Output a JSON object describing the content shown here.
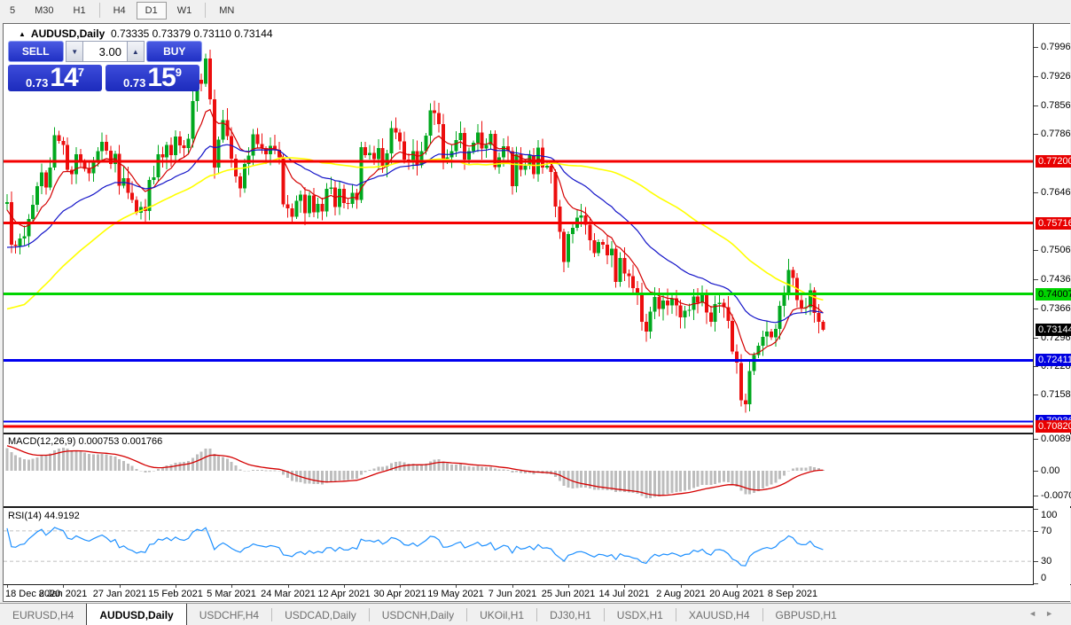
{
  "toolbar": {
    "buttons": [
      "5",
      "M30",
      "H1",
      "H4",
      "D1",
      "W1",
      "MN"
    ],
    "active": "D1",
    "separators_after": [
      3,
      6
    ]
  },
  "chart": {
    "header": {
      "symbol": "AUDUSD,Daily",
      "ohlc": "0.73335 0.73379 0.73110 0.73144"
    },
    "trade_panel": {
      "sell_label": "SELL",
      "buy_label": "BUY",
      "volume": "3.00",
      "spin_down_icon": "▼",
      "spin_up_icon": "▲",
      "sell_prefix": "0.73",
      "sell_big": "14",
      "sell_sup": "7",
      "buy_prefix": "0.73",
      "buy_big": "15",
      "buy_sup": "9"
    }
  },
  "chart_data": {
    "type": "candlestick",
    "symbol": "AUDUSD",
    "timeframe": "Daily",
    "current_price": 0.73144,
    "y_axis": {
      "max": 0.80515,
      "min": 0.70668
    },
    "y_ticks": [
      {
        "text": "0.79960",
        "price": 0.7996
      },
      {
        "text": "0.79260",
        "price": 0.7926
      },
      {
        "text": "0.78560",
        "price": 0.7856
      },
      {
        "text": "0.77860",
        "price": 0.7786
      },
      {
        "text": "0.76460",
        "price": 0.7646
      },
      {
        "text": "0.75060",
        "price": 0.7506
      },
      {
        "text": "0.74360",
        "price": 0.7436
      },
      {
        "text": "0.73660",
        "price": 0.7366
      },
      {
        "text": "0.72960",
        "price": 0.7296
      },
      {
        "text": "0.72280",
        "price": 0.7228
      },
      {
        "text": "0.71580",
        "price": 0.7158
      }
    ],
    "levels": [
      {
        "price": 0.772,
        "color": "#f40000",
        "width": 3
      },
      {
        "price": 0.75716,
        "color": "#f40000",
        "width": 3
      },
      {
        "price": 0.74007,
        "color": "#00d400",
        "width": 3
      },
      {
        "price": 0.72411,
        "color": "#0000f0",
        "width": 3
      },
      {
        "price": 0.70936,
        "color": "#0000f0",
        "width": 2
      },
      {
        "price": 0.7082,
        "color": "#f40000",
        "width": 3
      }
    ],
    "axis_labels": [
      {
        "text": "0.77200",
        "price": 0.772,
        "bg": "#e80000",
        "fg": "#fff"
      },
      {
        "text": "0.75716",
        "price": 0.75716,
        "bg": "#e80000",
        "fg": "#fff"
      },
      {
        "text": "0.74007",
        "price": 0.74007,
        "bg": "#00d400",
        "fg": "#000"
      },
      {
        "text": "0.72411",
        "price": 0.72411,
        "bg": "#0000e0",
        "fg": "#fff"
      },
      {
        "text": "0.70936",
        "price": 0.70936,
        "bg": "#0000e0",
        "fg": "#fff"
      },
      {
        "text": "0.70820",
        "price": 0.7082,
        "bg": "#e80000",
        "fg": "#fff"
      },
      {
        "text": "0.73144",
        "price": 0.73144,
        "bg": "#000000",
        "fg": "#fff"
      }
    ],
    "date_labels": [
      "18 Dec 2020",
      "8 Jan 2021",
      "27 Jan 2021",
      "15 Feb 2021",
      "5 Mar 2021",
      "24 Mar 2021",
      "12 Apr 2021",
      "30 Apr 2021",
      "19 May 2021",
      "7 Jun 2021",
      "25 Jun 2021",
      "14 Jul 2021",
      "2 Aug 2021",
      "20 Aug 2021",
      "8 Sep 2021"
    ],
    "date_label_bar_indices": [
      0,
      13,
      26,
      39,
      52,
      65,
      78,
      91,
      104,
      117,
      130,
      143,
      156,
      169,
      182
    ],
    "colors": {
      "up": "#00a81e",
      "down": "#ec0e0e",
      "ma_fast": "#d40000",
      "ma_mid": "#1414c8",
      "ma_slow": "#ffff00",
      "macd_hist": "#bdbdbd",
      "macd_signal": "#d40000",
      "rsi_line": "#1e90ff",
      "rsi_grid": "#c8c8c8"
    },
    "moving_averages": [
      {
        "name": "fast",
        "method": "ema",
        "period": 10
      },
      {
        "name": "mid",
        "method": "ema",
        "period": 30
      },
      {
        "name": "slow",
        "method": "sma",
        "period": 60
      }
    ],
    "prehistory_closes": [
      0.703,
      0.7045,
      0.706,
      0.7042,
      0.7075,
      0.7095,
      0.708,
      0.711,
      0.7135,
      0.712,
      0.715,
      0.717,
      0.7155,
      0.7185,
      0.721,
      0.7195,
      0.723,
      0.7255,
      0.724,
      0.727,
      0.73,
      0.7285,
      0.7315,
      0.734,
      0.7325,
      0.7355,
      0.738,
      0.7365,
      0.7395,
      0.742,
      0.7405,
      0.743,
      0.7455,
      0.744,
      0.747,
      0.749,
      0.7475,
      0.75,
      0.752,
      0.7505,
      0.753,
      0.755,
      0.7535,
      0.756,
      0.7575,
      0.756,
      0.7585,
      0.76,
      0.759,
      0.761,
      0.762,
      0.7605,
      0.7615,
      0.7625,
      0.7618
    ],
    "closes": [
      0.7622,
      0.752,
      0.7516,
      0.7535,
      0.754,
      0.7582,
      0.7616,
      0.7661,
      0.7694,
      0.7657,
      0.7705,
      0.7783,
      0.777,
      0.776,
      0.77,
      0.769,
      0.7738,
      0.772,
      0.7702,
      0.7692,
      0.772,
      0.7745,
      0.7767,
      0.7746,
      0.7714,
      0.7739,
      0.7662,
      0.768,
      0.7645,
      0.7628,
      0.7597,
      0.761,
      0.7601,
      0.7676,
      0.7682,
      0.7738,
      0.773,
      0.776,
      0.7735,
      0.778,
      0.7759,
      0.7752,
      0.7775,
      0.7866,
      0.7917,
      0.7907,
      0.7968,
      0.787,
      0.7706,
      0.7773,
      0.782,
      0.7781,
      0.7727,
      0.7684,
      0.7655,
      0.7714,
      0.7734,
      0.7786,
      0.7762,
      0.7752,
      0.7737,
      0.7758,
      0.7748,
      0.773,
      0.7617,
      0.7607,
      0.7587,
      0.7625,
      0.764,
      0.7595,
      0.7638,
      0.7598,
      0.7618,
      0.76,
      0.7654,
      0.7657,
      0.761,
      0.7654,
      0.762,
      0.7618,
      0.7645,
      0.7628,
      0.7755,
      0.7735,
      0.7741,
      0.7726,
      0.7752,
      0.7708,
      0.774,
      0.78,
      0.779,
      0.7768,
      0.7725,
      0.7718,
      0.7745,
      0.7711,
      0.7745,
      0.7782,
      0.7843,
      0.7837,
      0.781,
      0.7727,
      0.773,
      0.7745,
      0.7772,
      0.7789,
      0.7725,
      0.7745,
      0.7765,
      0.779,
      0.7751,
      0.776,
      0.7787,
      0.7706,
      0.773,
      0.7757,
      0.7745,
      0.7661,
      0.7738,
      0.77,
      0.771,
      0.7735,
      0.769,
      0.7754,
      0.7706,
      0.771,
      0.7695,
      0.7612,
      0.7551,
      0.7478,
      0.7545,
      0.756,
      0.7585,
      0.759,
      0.7568,
      0.753,
      0.7499,
      0.7526,
      0.752,
      0.7494,
      0.751,
      0.743,
      0.7488,
      0.745,
      0.7444,
      0.7415,
      0.74,
      0.7334,
      0.731,
      0.7358,
      0.7394,
      0.7365,
      0.7385,
      0.7373,
      0.739,
      0.7373,
      0.7344,
      0.736,
      0.7363,
      0.7395,
      0.738,
      0.74,
      0.7356,
      0.7334,
      0.7377,
      0.738,
      0.7369,
      0.7336,
      0.7262,
      0.7235,
      0.7145,
      0.7135,
      0.7215,
      0.7254,
      0.7276,
      0.7298,
      0.731,
      0.7296,
      0.7317,
      0.7372,
      0.74,
      0.7459,
      0.744,
      0.7386,
      0.7368,
      0.7369,
      0.741,
      0.7355,
      0.73335,
      0.73144
    ],
    "last_candle_ohlc": [
      0.73335,
      0.73379,
      0.7311,
      0.73144
    ],
    "macd": {
      "label_full": "MACD(12,26,9) 0.000753 0.001766",
      "params": [
        12,
        26,
        9
      ],
      "current_values": [
        0.000753,
        0.001766
      ],
      "axis_labels": [
        {
          "text": "0.008904",
          "v": 0.008904
        },
        {
          "text": "0.00",
          "v": 0.0
        },
        {
          "text": "-0.007013",
          "v": -0.007013
        }
      ],
      "range": {
        "max": 0.0102,
        "min": -0.01
      }
    },
    "rsi": {
      "label_full": "RSI(14) 44.9192",
      "period": 14,
      "current_value": 44.9192,
      "levels": [
        70,
        30
      ],
      "axis_labels": [
        {
          "text": "100",
          "v": 100
        },
        {
          "text": "70",
          "v": 70
        },
        {
          "text": "30",
          "v": 30
        },
        {
          "text": "0",
          "v": 0
        }
      ]
    }
  },
  "tabs": {
    "items": [
      {
        "label": "EURUSD,H4",
        "active": false
      },
      {
        "label": "AUDUSD,Daily",
        "active": true
      },
      {
        "label": "USDCHF,H4",
        "active": false
      },
      {
        "label": "USDCAD,Daily",
        "active": false
      },
      {
        "label": "USDCNH,Daily",
        "active": false
      },
      {
        "label": "UKOil,H1",
        "active": false
      },
      {
        "label": "DJ30,H1",
        "active": false
      },
      {
        "label": "USDX,H1",
        "active": false
      },
      {
        "label": "XAUUSD,H4",
        "active": false
      },
      {
        "label": "GBPUSD,H1",
        "active": false
      }
    ],
    "scroll_left_icon": "◄",
    "scroll_right_icon": "►"
  }
}
